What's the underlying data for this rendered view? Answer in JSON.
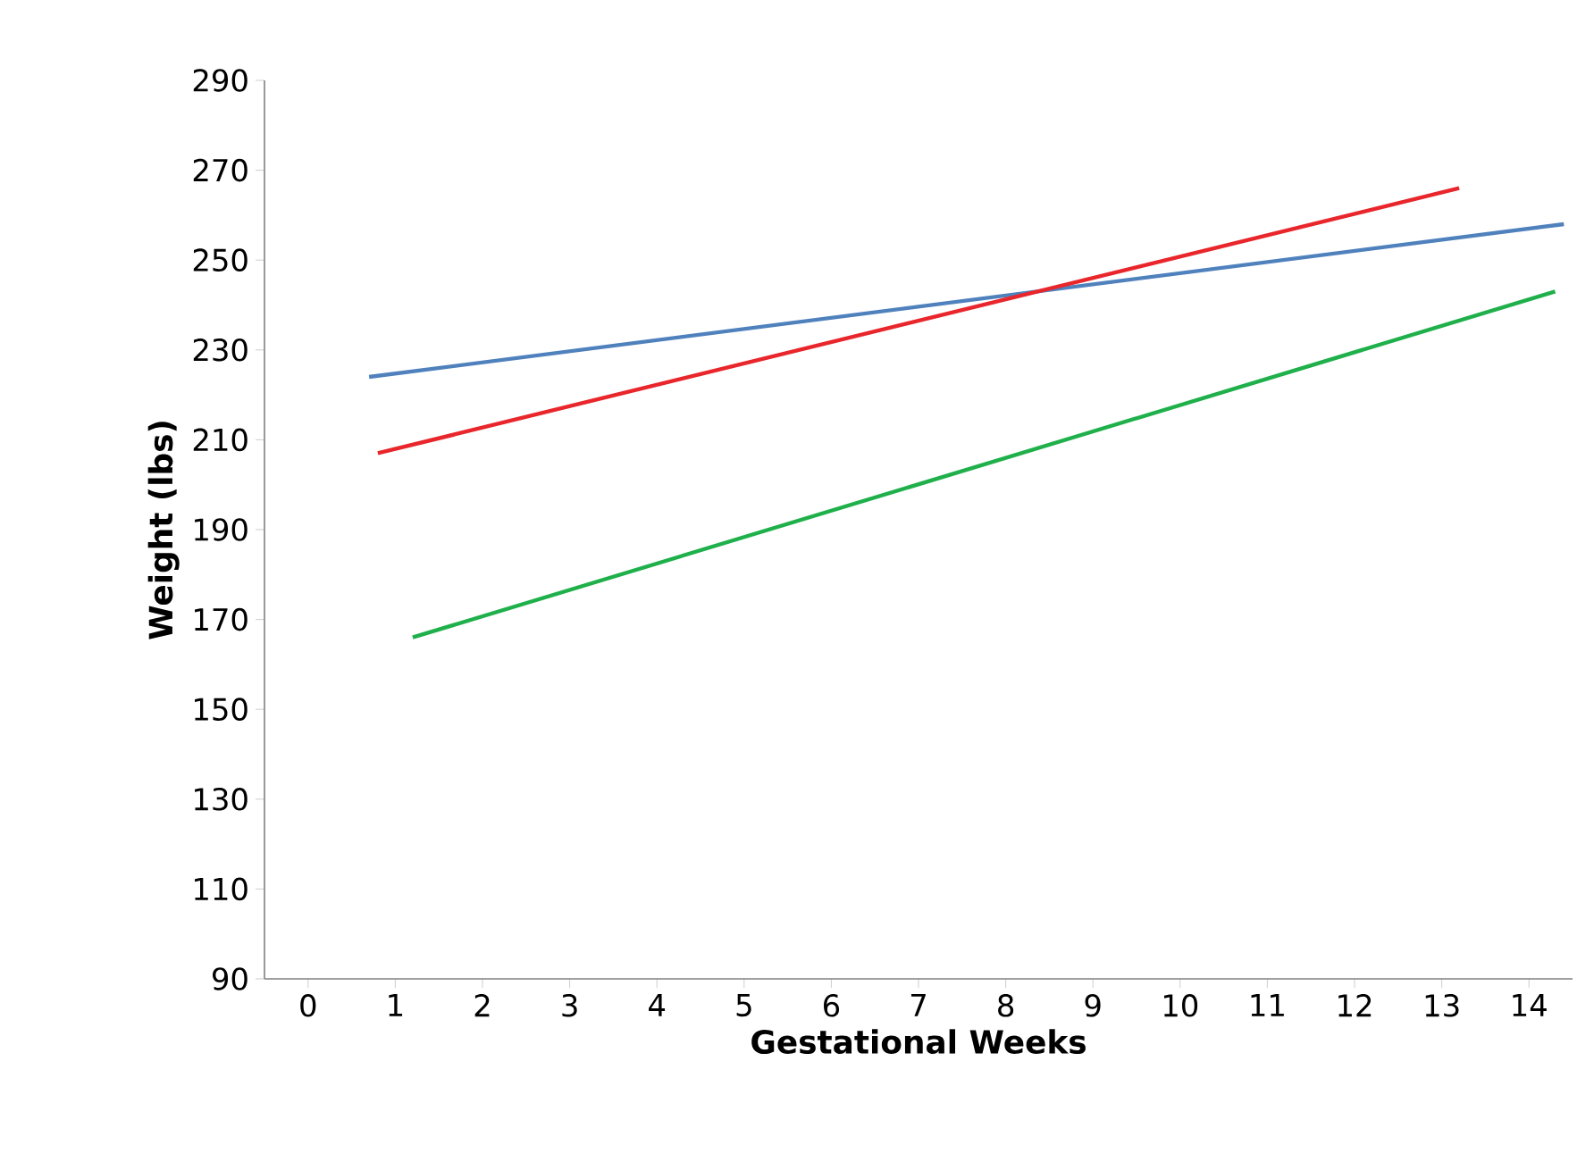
{
  "chart_data": {
    "type": "line",
    "xlabel": "Gestational Weeks",
    "ylabel": "Weight (lbs)",
    "xlim": [
      -0.5,
      14.5
    ],
    "xticks": [
      0,
      1,
      2,
      3,
      4,
      5,
      6,
      7,
      8,
      9,
      10,
      11,
      12,
      13,
      14
    ],
    "ylim": [
      90,
      290
    ],
    "yticks": [
      90,
      110,
      130,
      150,
      170,
      190,
      210,
      230,
      250,
      270,
      290
    ],
    "grid": false,
    "marker": "none",
    "line_style": "solid",
    "series": [
      {
        "color": "#4f81bd",
        "x": [
          0.7,
          14.4
        ],
        "values": [
          224,
          258
        ]
      },
      {
        "color": "#e8262b",
        "x": [
          0.8,
          13.2
        ],
        "values": [
          207,
          266
        ]
      },
      {
        "color": "#1fb04b",
        "x": [
          1.2,
          14.3
        ],
        "values": [
          166,
          243
        ]
      }
    ]
  }
}
